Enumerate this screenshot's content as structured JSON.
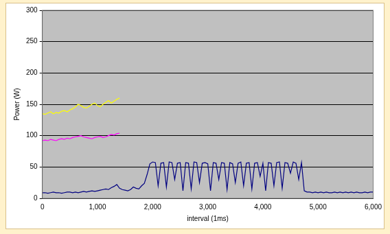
{
  "chart_data": {
    "type": "line",
    "y_label": "Power (W)",
    "x_label": "interval (1ms)",
    "xlim": [
      0,
      6000
    ],
    "xticks": [
      0,
      1000,
      2000,
      3000,
      4000,
      5000,
      6000
    ],
    "ylim": [
      0,
      300
    ],
    "yticks": [
      0,
      50,
      100,
      150,
      200,
      250,
      300
    ],
    "grid": true,
    "x": [
      0,
      50,
      100,
      150,
      200,
      250,
      300,
      350,
      400,
      450,
      500,
      550,
      600,
      650,
      700,
      750,
      800,
      850,
      900,
      950,
      1000,
      1050,
      1100,
      1150,
      1200,
      1250,
      1300,
      1350,
      1400,
      1450,
      1500,
      1550,
      1600,
      1650,
      1700,
      1750,
      1800,
      1850,
      1900,
      1950,
      2000,
      2050,
      2100,
      2150,
      2200,
      2250,
      2300,
      2350,
      2400,
      2450,
      2500,
      2550,
      2600,
      2650,
      2700,
      2750,
      2800,
      2850,
      2900,
      2950,
      3000,
      3050,
      3100,
      3150,
      3200,
      3250,
      3300,
      3350,
      3400,
      3450,
      3500,
      3550,
      3600,
      3650,
      3700,
      3750,
      3800,
      3850,
      3900,
      3950,
      4000,
      4050,
      4100,
      4150,
      4200,
      4250,
      4300,
      4350,
      4400,
      4450,
      4500,
      4550,
      4600,
      4650,
      4700,
      4750,
      4800,
      4850,
      4900,
      4950,
      5000,
      5050,
      5100,
      5150,
      5200,
      5250,
      5300,
      5350,
      5400,
      5450,
      5500,
      5550,
      5600,
      5650,
      5700,
      5750,
      5800,
      5850,
      5900,
      5950,
      6000
    ],
    "series": [
      {
        "color": "#ffff00",
        "values": [
          135,
          134,
          136,
          138,
          135,
          137,
          136,
          139,
          140,
          138,
          141,
          143,
          146,
          150,
          148,
          145,
          144,
          147,
          150,
          152,
          148,
          146,
          150,
          153,
          156,
          152,
          155,
          158,
          160,
          null,
          null,
          null,
          null,
          null,
          null,
          null,
          null,
          null,
          null,
          null,
          null,
          null,
          null,
          null,
          null,
          null,
          null,
          null,
          null,
          null,
          null,
          null,
          null,
          null,
          null,
          null,
          null,
          null,
          null,
          null,
          null,
          null,
          null,
          null,
          null,
          null,
          null,
          null,
          null,
          null,
          null,
          null,
          null,
          null,
          null,
          null,
          null,
          null,
          null,
          null,
          null,
          null,
          null,
          null,
          null,
          null,
          null,
          null,
          null,
          null,
          null,
          null,
          null,
          null,
          null,
          null,
          null,
          null,
          null,
          null,
          null,
          null,
          null,
          null,
          null,
          null,
          null,
          null,
          null,
          null,
          null,
          null,
          null,
          null,
          null,
          null,
          null,
          null,
          null,
          null,
          null
        ]
      },
      {
        "color": "#ff00ff",
        "values": [
          92,
          93,
          92,
          94,
          93,
          92,
          94,
          95,
          94,
          96,
          95,
          97,
          98,
          99,
          100,
          98,
          97,
          96,
          95,
          97,
          98,
          99,
          97,
          98,
          100,
          102,
          101,
          103,
          104,
          null,
          null,
          null,
          null,
          null,
          null,
          null,
          null,
          null,
          null,
          null,
          null,
          null,
          null,
          null,
          null,
          null,
          null,
          null,
          null,
          null,
          null,
          null,
          null,
          null,
          null,
          null,
          null,
          null,
          null,
          null,
          null,
          null,
          null,
          null,
          null,
          null,
          null,
          null,
          null,
          null,
          null,
          null,
          null,
          null,
          null,
          null,
          null,
          null,
          null,
          null,
          null,
          null,
          null,
          null,
          null,
          null,
          null,
          null,
          null,
          null,
          null,
          null,
          null,
          null,
          null,
          null,
          null,
          null,
          null,
          null,
          null,
          null,
          null,
          null,
          null,
          null,
          null,
          null,
          null,
          null,
          null,
          null,
          null,
          null,
          null,
          null,
          null,
          null,
          null,
          null,
          null
        ]
      },
      {
        "color": "#000080",
        "values": [
          9,
          9,
          8,
          9,
          10,
          9,
          9,
          8,
          9,
          10,
          10,
          9,
          10,
          9,
          10,
          11,
          10,
          11,
          12,
          11,
          12,
          13,
          14,
          15,
          14,
          17,
          19,
          22,
          16,
          14,
          13,
          12,
          14,
          18,
          16,
          15,
          20,
          24,
          38,
          55,
          58,
          57,
          20,
          56,
          57,
          18,
          58,
          57,
          30,
          56,
          57,
          12,
          57,
          56,
          15,
          58,
          57,
          25,
          56,
          57,
          55,
          12,
          57,
          56,
          30,
          57,
          56,
          14,
          57,
          55,
          25,
          56,
          58,
          20,
          56,
          57,
          15,
          56,
          57,
          35,
          56,
          12,
          57,
          56,
          20,
          57,
          58,
          16,
          57,
          56,
          40,
          58,
          56,
          30,
          57,
          12,
          10,
          10,
          9,
          10,
          9,
          10,
          9,
          10,
          9,
          9,
          10,
          9,
          10,
          9,
          10,
          9,
          10,
          9,
          10,
          9,
          9,
          10,
          9,
          10,
          10
        ]
      }
    ]
  }
}
